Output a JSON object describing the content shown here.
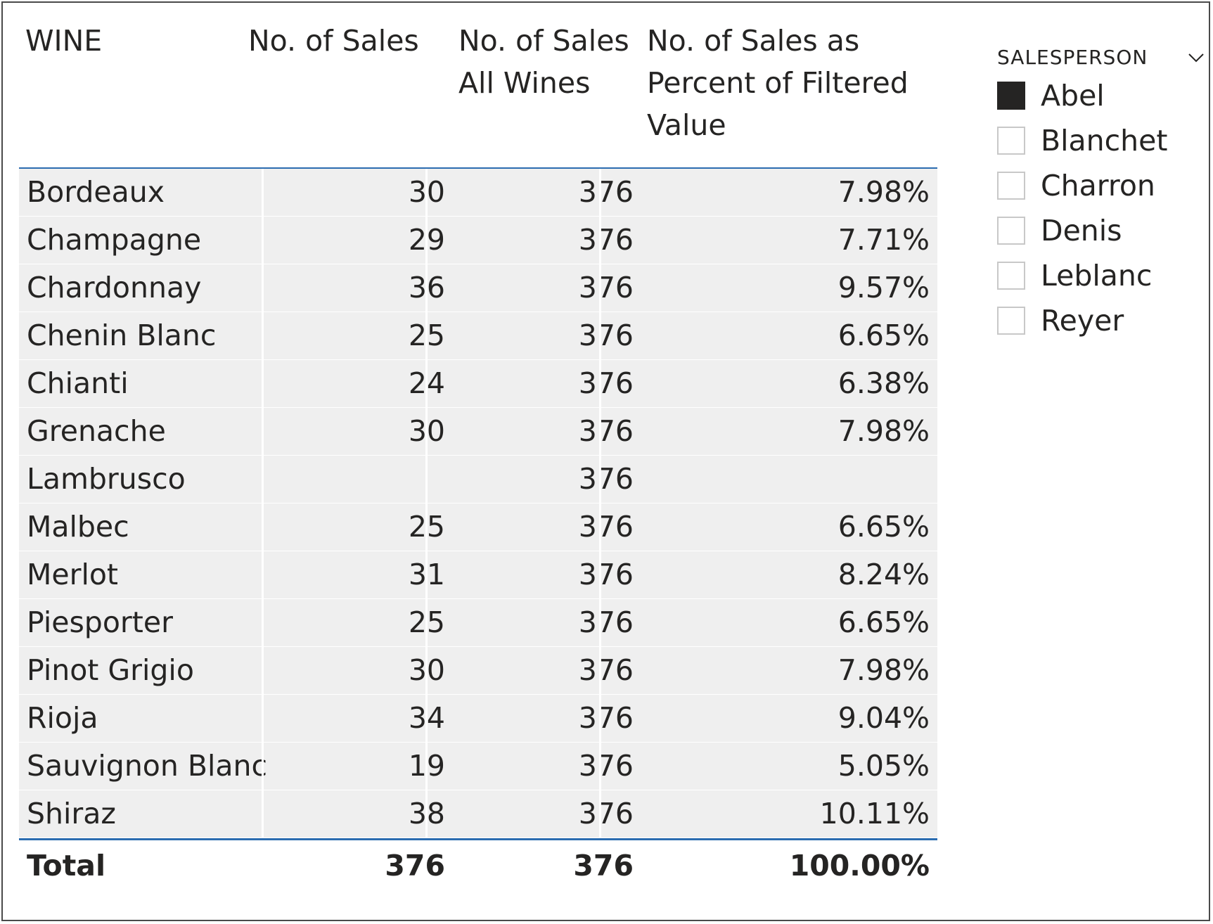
{
  "matrix": {
    "headers": {
      "wine": "WINE",
      "sales": "No. of Sales",
      "all_wines": "No. of Sales\nAll Wines",
      "pct": "No. of Sales as\nPercent of Filtered\nValue"
    },
    "rows": [
      {
        "wine": "Bordeaux",
        "sales": "30",
        "all": "376",
        "pct": "7.98%"
      },
      {
        "wine": "Champagne",
        "sales": "29",
        "all": "376",
        "pct": "7.71%"
      },
      {
        "wine": "Chardonnay",
        "sales": "36",
        "all": "376",
        "pct": "9.57%"
      },
      {
        "wine": "Chenin Blanc",
        "sales": "25",
        "all": "376",
        "pct": "6.65%"
      },
      {
        "wine": "Chianti",
        "sales": "24",
        "all": "376",
        "pct": "6.38%"
      },
      {
        "wine": "Grenache",
        "sales": "30",
        "all": "376",
        "pct": "7.98%"
      },
      {
        "wine": "Lambrusco",
        "sales": "",
        "all": "376",
        "pct": ""
      },
      {
        "wine": "Malbec",
        "sales": "25",
        "all": "376",
        "pct": "6.65%"
      },
      {
        "wine": "Merlot",
        "sales": "31",
        "all": "376",
        "pct": "8.24%"
      },
      {
        "wine": "Piesporter",
        "sales": "25",
        "all": "376",
        "pct": "6.65%"
      },
      {
        "wine": "Pinot Grigio",
        "sales": "30",
        "all": "376",
        "pct": "7.98%"
      },
      {
        "wine": "Rioja",
        "sales": "34",
        "all": "376",
        "pct": "9.04%"
      },
      {
        "wine": "Sauvignon Blanc",
        "sales": "19",
        "all": "376",
        "pct": "5.05%"
      },
      {
        "wine": "Shiraz",
        "sales": "38",
        "all": "376",
        "pct": "10.11%"
      }
    ],
    "total": {
      "label": "Total",
      "sales": "376",
      "all": "376",
      "pct": "100.00%"
    }
  },
  "slicer": {
    "title": "SALESPERSON",
    "options": [
      {
        "label": "Abel",
        "checked": true
      },
      {
        "label": "Blanchet",
        "checked": false
      },
      {
        "label": "Charron",
        "checked": false
      },
      {
        "label": "Denis",
        "checked": false
      },
      {
        "label": "Leblanc",
        "checked": false
      },
      {
        "label": "Reyer",
        "checked": false
      }
    ]
  }
}
